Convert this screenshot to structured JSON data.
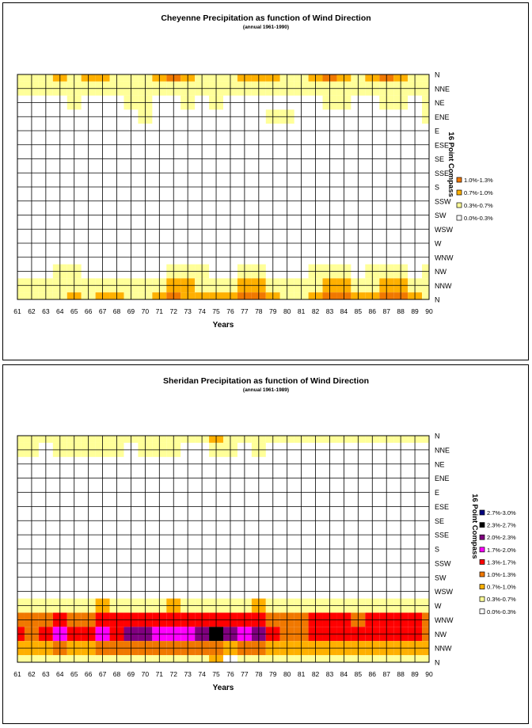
{
  "chart_data": [
    {
      "type": "heatmap",
      "title": "Cheyenne Precipitation as function of Wind Direction",
      "subtitle": "(annual 1961-1990)",
      "xlabel": "Years",
      "ylabel": "16 Point Compass",
      "x": [
        "61",
        "62",
        "63",
        "64",
        "65",
        "66",
        "67",
        "68",
        "69",
        "70",
        "71",
        "72",
        "73",
        "74",
        "75",
        "76",
        "77",
        "78",
        "79",
        "80",
        "81",
        "82",
        "83",
        "84",
        "85",
        "86",
        "87",
        "88",
        "89",
        "90"
      ],
      "y_top_to_bottom": [
        "N",
        "NNE",
        "NE",
        "ENE",
        "E",
        "ESE",
        "SE",
        "SSE",
        "S",
        "SSW",
        "SW",
        "WSW",
        "W",
        "WNW",
        "NW",
        "NNW",
        "N"
      ],
      "legend": [
        {
          "label": "1.0%-1.3%",
          "color": "#f07800"
        },
        {
          "label": "0.7%-1.0%",
          "color": "#ffb000"
        },
        {
          "label": "0.3%-0.7%",
          "color": "#ffff99"
        },
        {
          "label": "0.0%-0.3%",
          "color": "#ffffff"
        }
      ],
      "rows_approx_pct": {
        "N": [
          0.5,
          0.6,
          0.5,
          0.8,
          0.6,
          0.7,
          0.8,
          0.6,
          0.5,
          0.6,
          0.8,
          1.0,
          0.7,
          0.6,
          0.6,
          0.6,
          0.7,
          0.9,
          0.8,
          0.6,
          0.4,
          0.7,
          1.1,
          0.9,
          0.6,
          0.8,
          1.1,
          0.9,
          0.6,
          0.5
        ],
        "NNE": [
          0.4,
          0.4,
          0.3,
          0.5,
          0.3,
          0.4,
          0.5,
          0.4,
          0.3,
          0.5,
          0.4,
          0.5,
          0.4,
          0.3,
          0.4,
          0.3,
          0.4,
          0.5,
          0.5,
          0.3,
          0.3,
          0.4,
          0.5,
          0.4,
          0.4,
          0.4,
          0.5,
          0.4,
          0.4,
          0.3
        ],
        "NE": [
          0.2,
          0.2,
          0.1,
          0.2,
          0.3,
          0.1,
          0.2,
          0.2,
          0.3,
          0.3,
          0.2,
          0.2,
          0.4,
          0.2,
          0.3,
          0.1,
          0.2,
          0.2,
          0.1,
          0.2,
          0.2,
          0.2,
          0.3,
          0.3,
          0.2,
          0.2,
          0.3,
          0.3,
          0.2,
          0.4
        ],
        "ENE": [
          0.0,
          0.1,
          0.1,
          0.1,
          0.0,
          0.1,
          0.1,
          0.2,
          0.2,
          0.3,
          0.1,
          0.1,
          0.1,
          0.1,
          0.1,
          0.1,
          0.1,
          0.2,
          0.3,
          0.3,
          0.1,
          0.1,
          0.1,
          0.1,
          0.1,
          0.1,
          0.1,
          0.1,
          0.1,
          0.3
        ],
        "NW": [
          0.1,
          0.2,
          0.2,
          0.3,
          0.3,
          0.2,
          0.2,
          0.2,
          0.2,
          0.2,
          0.2,
          0.3,
          0.4,
          0.3,
          0.2,
          0.2,
          0.3,
          0.3,
          0.2,
          0.1,
          0.2,
          0.3,
          0.3,
          0.3,
          0.2,
          0.3,
          0.3,
          0.3,
          0.2,
          0.3
        ],
        "NNW": [
          0.4,
          0.5,
          0.4,
          0.5,
          0.6,
          0.5,
          0.5,
          0.5,
          0.5,
          0.5,
          0.6,
          0.8,
          0.7,
          0.5,
          0.6,
          0.5,
          0.7,
          0.7,
          0.6,
          0.4,
          0.5,
          0.6,
          0.8,
          0.7,
          0.5,
          0.6,
          0.8,
          0.7,
          0.6,
          0.5
        ],
        "N_bottom": [
          0.5,
          0.6,
          0.5,
          0.6,
          0.8,
          0.6,
          0.7,
          0.7,
          0.6,
          0.6,
          0.8,
          1.1,
          0.9,
          0.7,
          0.9,
          0.7,
          1.0,
          1.1,
          0.9,
          0.6,
          0.6,
          0.9,
          1.2,
          1.0,
          0.7,
          0.9,
          1.2,
          1.0,
          0.8,
          0.6
        ]
      }
    },
    {
      "type": "heatmap",
      "title": "Sheridan Precipitation as function of Wind Direction",
      "subtitle": "(annual 1961-1989)",
      "xlabel": "Years",
      "ylabel": "16 Point Compass",
      "x": [
        "61",
        "62",
        "63",
        "64",
        "65",
        "66",
        "67",
        "68",
        "69",
        "70",
        "71",
        "72",
        "73",
        "74",
        "75",
        "76",
        "77",
        "78",
        "79",
        "80",
        "81",
        "82",
        "83",
        "84",
        "85",
        "86",
        "87",
        "88",
        "89",
        "90"
      ],
      "y_top_to_bottom": [
        "N",
        "NNE",
        "NE",
        "ENE",
        "E",
        "ESE",
        "SE",
        "SSE",
        "S",
        "SSW",
        "SW",
        "WSW",
        "W",
        "WNW",
        "NW",
        "NNW",
        "N"
      ],
      "legend": [
        {
          "label": "2.7%-3.0%",
          "color": "#000080"
        },
        {
          "label": "2.3%-2.7%",
          "color": "#000000"
        },
        {
          "label": "2.0%-2.3%",
          "color": "#800080"
        },
        {
          "label": "1.7%-2.0%",
          "color": "#ff00ff"
        },
        {
          "label": "1.3%-1.7%",
          "color": "#ff0000"
        },
        {
          "label": "1.0%-1.3%",
          "color": "#f07800"
        },
        {
          "label": "0.7%-1.0%",
          "color": "#ffb000"
        },
        {
          "label": "0.3%-0.7%",
          "color": "#ffff99"
        },
        {
          "label": "0.0%-0.3%",
          "color": "#ffffff"
        }
      ],
      "rows_approx_pct": {
        "N": [
          0.4,
          0.5,
          0.4,
          0.4,
          0.4,
          0.4,
          0.4,
          0.4,
          0.4,
          0.4,
          0.5,
          0.5,
          0.4,
          0.4,
          0.8,
          0.5,
          0.4,
          0.4,
          0.4,
          0.4,
          0.4,
          0.4,
          0.4,
          0.4,
          0.4,
          0.4,
          0.4,
          0.4,
          0.4,
          0.4
        ],
        "NNE": [
          0.3,
          0.3,
          0.2,
          0.3,
          0.3,
          0.3,
          0.3,
          0.3,
          0.2,
          0.3,
          0.3,
          0.3,
          0.2,
          0.2,
          0.3,
          0.3,
          0.2,
          0.3,
          0.2,
          0.2,
          0.2,
          0.2,
          0.2,
          0.2,
          0.2,
          0.2,
          0.2,
          0.2,
          0.2,
          0.2
        ],
        "W": [
          0.5,
          0.5,
          0.5,
          0.6,
          0.6,
          0.6,
          0.7,
          0.6,
          0.6,
          0.6,
          0.6,
          0.7,
          0.6,
          0.6,
          0.6,
          0.6,
          0.6,
          0.7,
          0.6,
          0.5,
          0.5,
          0.6,
          0.6,
          0.6,
          0.6,
          0.6,
          0.6,
          0.6,
          0.6,
          0.5
        ],
        "WNW": [
          1.1,
          1.0,
          1.1,
          1.3,
          1.2,
          1.2,
          1.3,
          1.3,
          1.3,
          1.3,
          1.3,
          1.4,
          1.3,
          1.3,
          1.4,
          1.3,
          1.3,
          1.4,
          1.2,
          1.0,
          1.0,
          1.3,
          1.3,
          1.3,
          1.2,
          1.3,
          1.3,
          1.3,
          1.3,
          1.0
        ],
        "NW": [
          1.3,
          1.2,
          1.4,
          1.8,
          1.6,
          1.6,
          1.7,
          1.6,
          2.1,
          2.1,
          1.7,
          1.9,
          1.9,
          2.2,
          2.5,
          2.0,
          1.9,
          2.0,
          1.5,
          1.1,
          1.1,
          1.4,
          1.4,
          1.5,
          1.4,
          1.5,
          1.4,
          1.4,
          1.4,
          1.0
        ],
        "NNW": [
          0.8,
          0.7,
          0.8,
          1.0,
          0.9,
          0.9,
          1.0,
          1.0,
          1.0,
          1.0,
          1.0,
          1.1,
          1.0,
          1.0,
          1.1,
          0.9,
          1.0,
          1.0,
          0.9,
          0.7,
          0.7,
          0.9,
          0.9,
          0.9,
          0.9,
          0.9,
          0.9,
          0.9,
          0.9,
          0.7
        ],
        "N_bottom": [
          0.3,
          0.3,
          0.3,
          0.4,
          0.4,
          0.4,
          0.4,
          0.4,
          0.4,
          0.4,
          0.4,
          0.4,
          0.4,
          0.4,
          0.9,
          0.2,
          0.4,
          0.4,
          0.4,
          0.3,
          0.3,
          0.4,
          0.4,
          0.4,
          0.4,
          0.4,
          0.4,
          0.4,
          0.4,
          0.3
        ]
      }
    }
  ]
}
